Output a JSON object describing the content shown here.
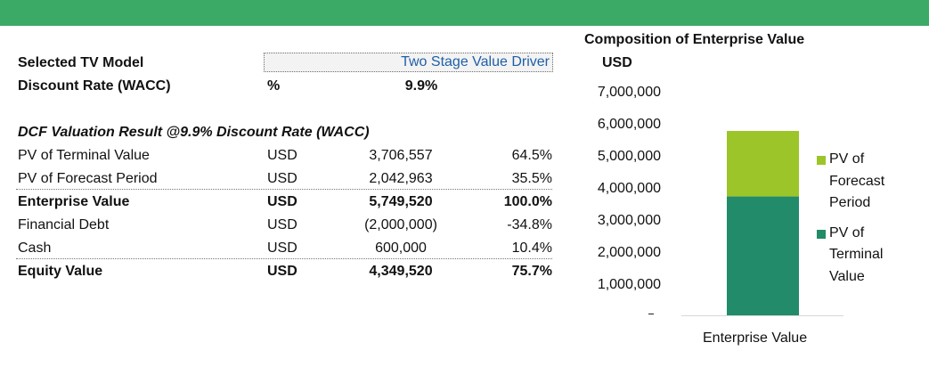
{
  "header": {
    "bar_color": "#3aaa66"
  },
  "selection": {
    "model_label": "Selected TV Model",
    "model_value": "Two Stage Value Driver",
    "rate_label": "Discount Rate (WACC)",
    "rate_unit": "%",
    "rate_value": "9.9%"
  },
  "result": {
    "title": "DCF Valuation Result @9.9% Discount Rate (WACC)",
    "rows": [
      {
        "label": "PV of Terminal Value",
        "unit": "USD",
        "value": "3,706,557",
        "pct": "64.5%",
        "bold": false
      },
      {
        "label": "PV of Forecast Period",
        "unit": "USD",
        "value": "2,042,963",
        "pct": "35.5%",
        "bold": false
      },
      {
        "label": "Enterprise Value",
        "unit": "USD",
        "value": "5,749,520",
        "pct": "100.0%",
        "bold": true
      },
      {
        "label": "Financial Debt",
        "unit": "USD",
        "value": "(2,000,000)",
        "pct": "-34.8%",
        "bold": false
      },
      {
        "label": "Cash",
        "unit": "USD",
        "value": "600,000",
        "pct": "10.4%",
        "bold": false
      },
      {
        "label": "Equity Value",
        "unit": "USD",
        "value": "4,349,520",
        "pct": "75.7%",
        "bold": true
      }
    ]
  },
  "chart_data": {
    "type": "bar",
    "stacked": true,
    "title": "Composition of Enterprise Value",
    "ylabel": "USD",
    "categories": [
      "Enterprise Value"
    ],
    "ylim": [
      0,
      7000000
    ],
    "y_ticks": [
      "1,000,000",
      "2,000,000",
      "3,000,000",
      "4,000,000",
      "5,000,000",
      "6,000,000",
      "7,000,000"
    ],
    "series": [
      {
        "name": "PV of Terminal Value",
        "values": [
          3706557
        ],
        "color": "#228b6a"
      },
      {
        "name": "PV of Forecast Period",
        "values": [
          2042963
        ],
        "color": "#9cc52a"
      }
    ],
    "legend": {
      "position": "right",
      "entries": [
        {
          "lines": [
            "PV of",
            "Forecast",
            "Period"
          ],
          "color": "#9cc52a"
        },
        {
          "lines": [
            "PV of",
            "Terminal",
            "Value"
          ],
          "color": "#228b6a"
        }
      ]
    },
    "grid": false
  }
}
